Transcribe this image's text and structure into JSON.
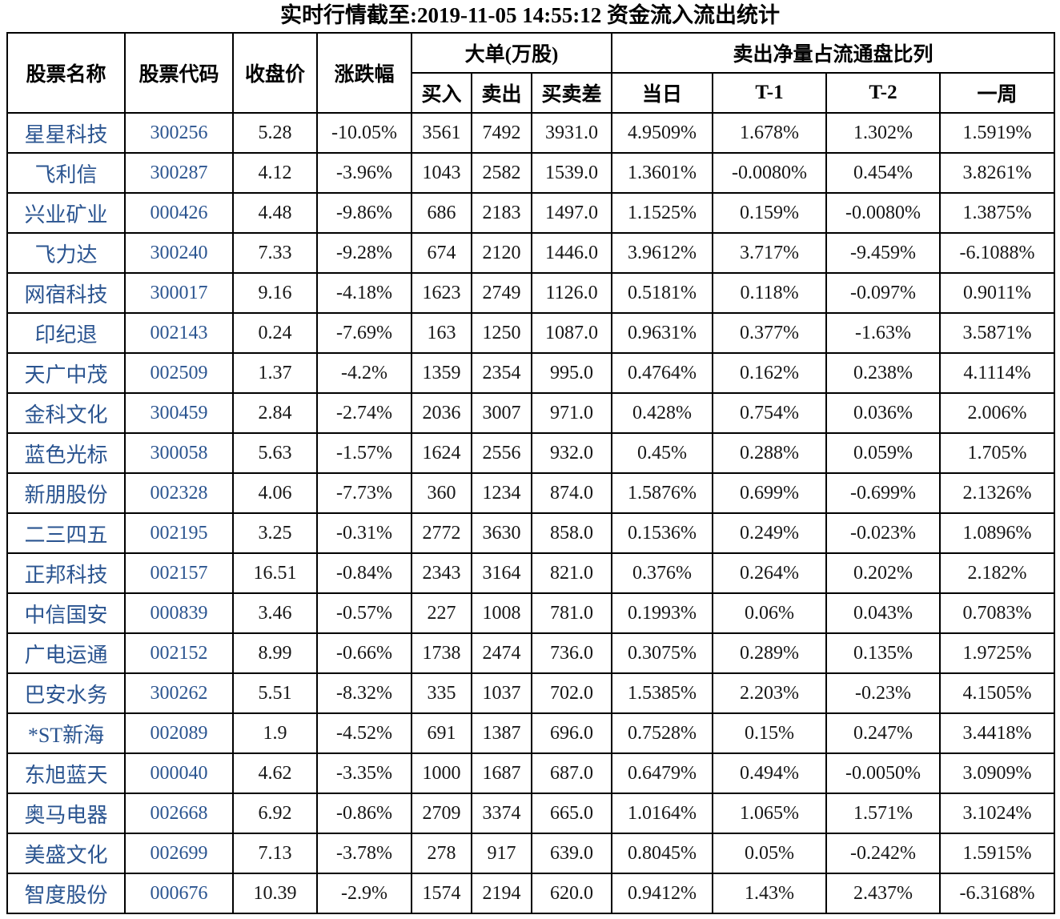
{
  "title": "实时行情截至:2019-11-05 14:55:12 资金流入流出统计",
  "colors": {
    "stock_text_blue": "#2A5490",
    "table_border": "#000000",
    "body_text": "#161616",
    "background": "#ffffff"
  },
  "chart_data": {
    "type": "table",
    "title": "实时行情截至:2019-11-05 14:55:12 资金流入流出统计",
    "column_groups": [
      {
        "label": "大单(万股)",
        "span": 3
      },
      {
        "label": "卖出净量占流通盘比列",
        "span": 4
      }
    ],
    "columns": [
      "股票名称",
      "股票代码",
      "收盘价",
      "涨跌幅",
      "买入",
      "卖出",
      "买卖差",
      "当日",
      "T-1",
      "T-2",
      "一周"
    ],
    "rows": [
      [
        "星星科技",
        "300256",
        "5.28",
        "-10.05%",
        "3561",
        "7492",
        "3931.0",
        "4.9509%",
        "1.678%",
        "1.302%",
        "1.5919%"
      ],
      [
        "飞利信",
        "300287",
        "4.12",
        "-3.96%",
        "1043",
        "2582",
        "1539.0",
        "1.3601%",
        "-0.0080%",
        "0.454%",
        "3.8261%"
      ],
      [
        "兴业矿业",
        "000426",
        "4.48",
        "-9.86%",
        "686",
        "2183",
        "1497.0",
        "1.1525%",
        "0.159%",
        "-0.0080%",
        "1.3875%"
      ],
      [
        "飞力达",
        "300240",
        "7.33",
        "-9.28%",
        "674",
        "2120",
        "1446.0",
        "3.9612%",
        "3.717%",
        "-9.459%",
        "-6.1088%"
      ],
      [
        "网宿科技",
        "300017",
        "9.16",
        "-4.18%",
        "1623",
        "2749",
        "1126.0",
        "0.5181%",
        "0.118%",
        "-0.097%",
        "0.9011%"
      ],
      [
        "印纪退",
        "002143",
        "0.24",
        "-7.69%",
        "163",
        "1250",
        "1087.0",
        "0.9631%",
        "0.377%",
        "-1.63%",
        "3.5871%"
      ],
      [
        "天广中茂",
        "002509",
        "1.37",
        "-4.2%",
        "1359",
        "2354",
        "995.0",
        "0.4764%",
        "0.162%",
        "0.238%",
        "4.1114%"
      ],
      [
        "金科文化",
        "300459",
        "2.84",
        "-2.74%",
        "2036",
        "3007",
        "971.0",
        "0.428%",
        "0.754%",
        "0.036%",
        "2.006%"
      ],
      [
        "蓝色光标",
        "300058",
        "5.63",
        "-1.57%",
        "1624",
        "2556",
        "932.0",
        "0.45%",
        "0.288%",
        "0.059%",
        "1.705%"
      ],
      [
        "新朋股份",
        "002328",
        "4.06",
        "-7.73%",
        "360",
        "1234",
        "874.0",
        "1.5876%",
        "0.699%",
        "-0.699%",
        "2.1326%"
      ],
      [
        "二三四五",
        "002195",
        "3.25",
        "-0.31%",
        "2772",
        "3630",
        "858.0",
        "0.1536%",
        "0.249%",
        "-0.023%",
        "1.0896%"
      ],
      [
        "正邦科技",
        "002157",
        "16.51",
        "-0.84%",
        "2343",
        "3164",
        "821.0",
        "0.376%",
        "0.264%",
        "0.202%",
        "2.182%"
      ],
      [
        "中信国安",
        "000839",
        "3.46",
        "-0.57%",
        "227",
        "1008",
        "781.0",
        "0.1993%",
        "0.06%",
        "0.043%",
        "0.7083%"
      ],
      [
        "广电运通",
        "002152",
        "8.99",
        "-0.66%",
        "1738",
        "2474",
        "736.0",
        "0.3075%",
        "0.289%",
        "0.135%",
        "1.9725%"
      ],
      [
        "巴安水务",
        "300262",
        "5.51",
        "-8.32%",
        "335",
        "1037",
        "702.0",
        "1.5385%",
        "2.203%",
        "-0.23%",
        "4.1505%"
      ],
      [
        "*ST新海",
        "002089",
        "1.9",
        "-4.52%",
        "691",
        "1387",
        "696.0",
        "0.7528%",
        "0.15%",
        "0.247%",
        "3.4418%"
      ],
      [
        "东旭蓝天",
        "000040",
        "4.62",
        "-3.35%",
        "1000",
        "1687",
        "687.0",
        "0.6479%",
        "0.494%",
        "-0.0050%",
        "3.0909%"
      ],
      [
        "奥马电器",
        "002668",
        "6.92",
        "-0.86%",
        "2709",
        "3374",
        "665.0",
        "1.0164%",
        "1.065%",
        "1.571%",
        "3.1024%"
      ],
      [
        "美盛文化",
        "002699",
        "7.13",
        "-3.78%",
        "278",
        "917",
        "639.0",
        "0.8045%",
        "0.05%",
        "-0.242%",
        "1.5915%"
      ],
      [
        "智度股份",
        "000676",
        "10.39",
        "-2.9%",
        "1574",
        "2194",
        "620.0",
        "0.9412%",
        "1.43%",
        "2.437%",
        "-6.3168%"
      ]
    ]
  }
}
